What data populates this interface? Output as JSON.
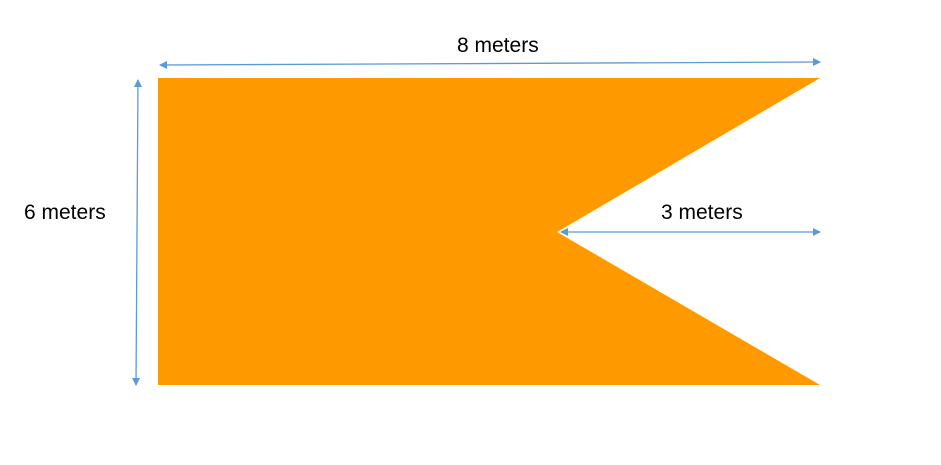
{
  "diagram": {
    "shape_color": "#FF9900",
    "arrow_color": "#5B9BD5",
    "labels": {
      "top_width": "8 meters",
      "left_height": "6 meters",
      "notch_depth": "3 meters"
    }
  }
}
